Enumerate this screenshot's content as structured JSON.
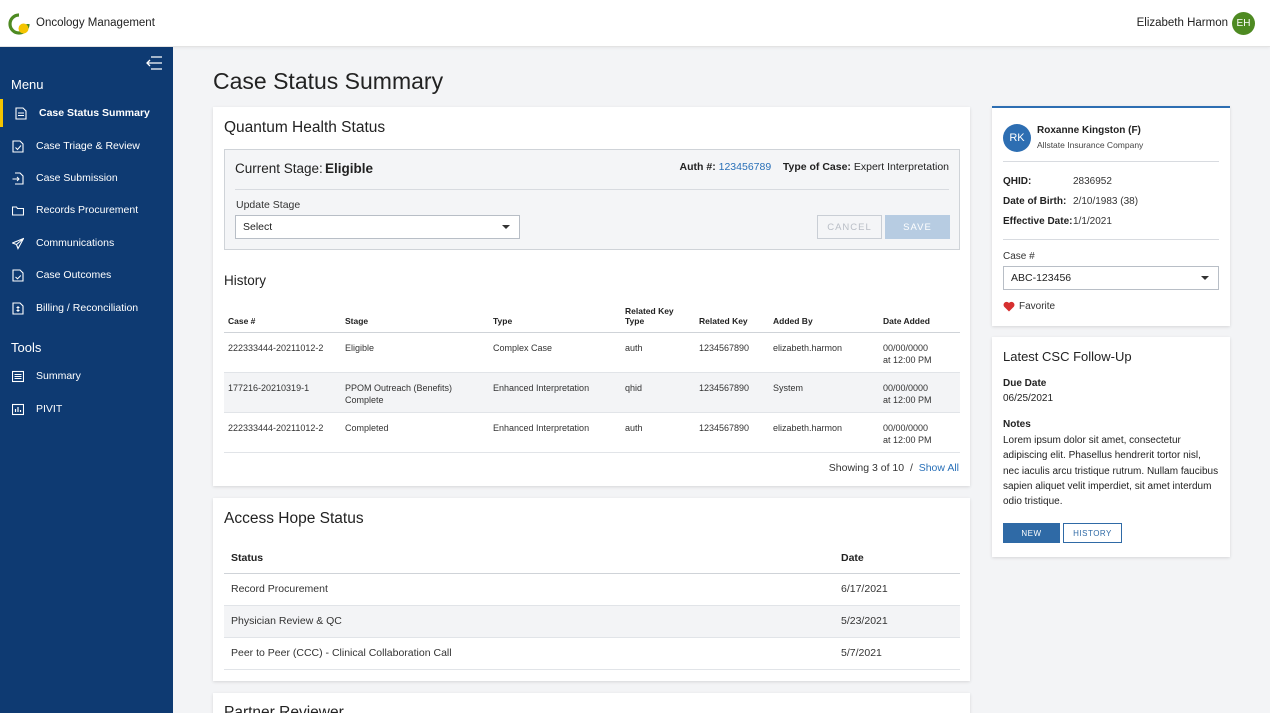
{
  "header": {
    "app_title": "Oncology Management",
    "user_name": "Elizabeth Harmon",
    "user_initials": "EH",
    "logo_colors": [
      "#f4c400",
      "#4e8a22"
    ]
  },
  "sidebar": {
    "menu_heading": "Menu",
    "menu_items": [
      {
        "label": "Case Status Summary",
        "icon": "document-icon",
        "active": true
      },
      {
        "label": "Case Triage & Review",
        "icon": "document-check-icon",
        "active": false
      },
      {
        "label": "Case Submission",
        "icon": "document-arrow-icon",
        "active": false
      },
      {
        "label": "Records Procurement",
        "icon": "folder-icon",
        "active": false
      },
      {
        "label": "Communications",
        "icon": "send-icon",
        "active": false
      },
      {
        "label": "Case Outcomes",
        "icon": "document-icon",
        "active": false
      },
      {
        "label": "Billing / Reconciliation",
        "icon": "invoice-icon",
        "active": false
      }
    ],
    "tools_heading": "Tools",
    "tools_items": [
      {
        "label": "Summary",
        "icon": "list-icon"
      },
      {
        "label": "PIVIT",
        "icon": "chart-icon"
      }
    ],
    "accent_color": "#f4c400",
    "background_color": "#0e3a72"
  },
  "main": {
    "page_title": "Case Status Summary",
    "quantum": {
      "title": "Quantum Health Status",
      "current_stage_label": "Current Stage:",
      "current_stage_value": "Eligible",
      "auth_label": "Auth #:",
      "auth_value": "123456789",
      "case_type_label": "Type of Case:",
      "case_type_value": "Expert Interpretation",
      "update_stage_label": "Update Stage",
      "update_stage_selected": "Select",
      "cancel_label": "CANCEL",
      "save_label": "SAVE"
    },
    "history": {
      "title": "History",
      "columns": [
        "Case #",
        "Stage",
        "Type",
        "Related Key Type",
        "Related Key",
        "Added By",
        "Date Added"
      ],
      "rows": [
        {
          "case": "222333444-20211012-2",
          "stage": "Eligible",
          "type": "Complex Case",
          "key_type": "auth",
          "key": "1234567890",
          "added_by": "elizabeth.harmon",
          "date": "00/00/0000",
          "time": "at 12:00 PM"
        },
        {
          "case": "177216-20210319-1",
          "stage": "PPOM Outreach (Benefits) Complete",
          "type": "Enhanced Interpretation",
          "key_type": "qhid",
          "key": "1234567890",
          "added_by": "System",
          "date": "00/00/0000",
          "time": "at 12:00 PM"
        },
        {
          "case": "222333444-20211012-2",
          "stage": "Completed",
          "type": "Enhanced Interpretation",
          "key_type": "auth",
          "key": "1234567890",
          "added_by": "elizabeth.harmon",
          "date": "00/00/0000",
          "time": "at 12:00 PM"
        }
      ],
      "showing_text": "Showing 3 of 10",
      "separator": "/",
      "show_all_label": "Show All"
    },
    "access_hope": {
      "title": "Access Hope Status",
      "columns": [
        "Status",
        "Date"
      ],
      "rows": [
        {
          "status": "Record Procurement",
          "date": "6/17/2021"
        },
        {
          "status": "Physician Review & QC",
          "date": "5/23/2021"
        },
        {
          "status": "Peer to Peer (CCC) - Clinical Collaboration Call",
          "date": "5/7/2021"
        }
      ]
    },
    "partner": {
      "title": "Partner Reviewer"
    }
  },
  "patient": {
    "initials": "RK",
    "name": "Roxanne Kingston (F)",
    "company": "Allstate Insurance Company",
    "qhid_label": "QHID:",
    "qhid_value": "2836952",
    "dob_label": "Date of Birth:",
    "dob_value": "2/10/1983 (38)",
    "effective_label": "Effective Date:",
    "effective_value": "1/1/2021",
    "case_label": "Case #",
    "case_selected": "ABC-123456",
    "favorite_label": "Favorite",
    "favorite_color": "#d62f2f"
  },
  "followup": {
    "title": "Latest CSC Follow-Up",
    "due_label": "Due Date",
    "due_value": "06/25/2021",
    "notes_label": "Notes",
    "notes_text": "Lorem ipsum dolor sit amet, consectetur adipiscing elit. Phasellus hendrerit tortor nisl, nec iaculis arcu tristique rutrum. Nullam faucibus sapien aliquet velit imperdiet, sit amet interdum odio tristique.",
    "new_label": "NEW",
    "history_label": "HISTORY"
  }
}
